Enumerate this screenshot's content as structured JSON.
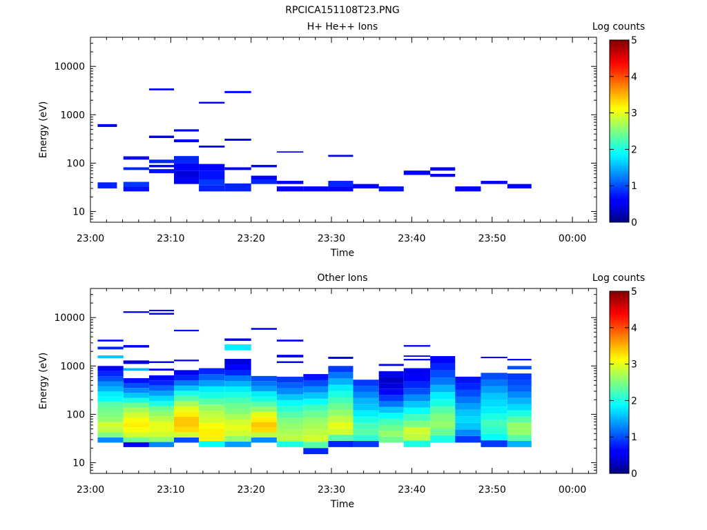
{
  "figure_title": "RPCICA151108T23.PNG",
  "colorbar_label": "Log counts",
  "chart_data": [
    {
      "type": "heatmap",
      "title": "H+ He++ Ions",
      "xlabel": "Time",
      "ylabel": "Energy (eV)",
      "x_ticks": [
        "23:00",
        "23:10",
        "23:20",
        "23:30",
        "23:40",
        "23:50",
        "00:00"
      ],
      "x_range_minutes": [
        0,
        63
      ],
      "y_scale": "log",
      "y_ticks": [
        "10",
        "100",
        "1000",
        "10000"
      ],
      "y_range_ev": [
        6,
        40000
      ],
      "colorbar_ticks": [
        "0",
        "1",
        "2",
        "3",
        "4",
        "5"
      ],
      "color_range": [
        0,
        5
      ],
      "cells": [
        [
          0.9,
          3.3,
          30,
          40,
          0.8
        ],
        [
          0.9,
          3.3,
          560,
          640,
          0.5
        ],
        [
          4.1,
          7.3,
          26,
          33,
          0.7
        ],
        [
          4.1,
          7.3,
          33,
          41,
          0.9
        ],
        [
          4.1,
          7.3,
          72,
          82,
          0.8
        ],
        [
          4.1,
          7.3,
          118,
          130,
          0.6
        ],
        [
          4.1,
          7.3,
          130,
          138,
          0.4
        ],
        [
          7.3,
          10.4,
          62,
          75,
          0.7
        ],
        [
          7.3,
          10.4,
          82,
          92,
          0.6
        ],
        [
          7.3,
          10.4,
          100,
          118,
          0.8
        ],
        [
          7.3,
          10.4,
          330,
          370,
          0.5
        ],
        [
          7.3,
          10.4,
          3200,
          3500,
          0.6
        ],
        [
          10.4,
          13.5,
          37,
          50,
          0.5
        ],
        [
          10.4,
          13.5,
          50,
          70,
          0.4
        ],
        [
          10.4,
          13.5,
          70,
          100,
          0.55
        ],
        [
          10.4,
          13.5,
          100,
          140,
          0.8
        ],
        [
          10.4,
          13.5,
          270,
          310,
          0.5
        ],
        [
          10.4,
          13.5,
          450,
          500,
          0.5
        ],
        [
          13.5,
          16.7,
          26,
          35,
          0.8
        ],
        [
          13.5,
          16.7,
          35,
          46,
          0.9
        ],
        [
          13.5,
          16.7,
          46,
          70,
          0.7
        ],
        [
          13.5,
          16.7,
          70,
          96,
          0.6
        ],
        [
          13.5,
          16.7,
          210,
          230,
          0.5
        ],
        [
          13.5,
          16.7,
          1700,
          1850,
          0.6
        ],
        [
          16.7,
          20.0,
          26,
          38,
          0.8
        ],
        [
          16.7,
          20.0,
          72,
          82,
          0.6
        ],
        [
          16.7,
          20.0,
          290,
          320,
          0.5
        ],
        [
          16.7,
          20.0,
          2800,
          3100,
          0.7
        ],
        [
          20.0,
          23.2,
          37,
          46,
          0.8
        ],
        [
          20.0,
          23.2,
          46,
          55,
          0.6
        ],
        [
          20.0,
          23.2,
          82,
          92,
          0.6
        ],
        [
          23.2,
          26.5,
          26,
          33,
          0.6
        ],
        [
          23.2,
          26.5,
          37,
          43,
          0.6
        ],
        [
          23.2,
          26.5,
          165,
          175,
          0.5
        ],
        [
          26.5,
          29.6,
          26,
          33,
          0.6
        ],
        [
          29.6,
          32.7,
          26,
          33,
          0.6
        ],
        [
          29.6,
          32.7,
          33,
          43,
          0.8
        ],
        [
          29.6,
          32.7,
          135,
          148,
          0.5
        ],
        [
          32.7,
          35.9,
          30,
          37,
          0.5
        ],
        [
          35.9,
          39.0,
          26,
          33,
          0.7
        ],
        [
          39.0,
          42.3,
          57,
          70,
          0.6
        ],
        [
          42.3,
          45.4,
          52,
          60,
          0.5
        ],
        [
          42.3,
          45.4,
          70,
          82,
          0.6
        ],
        [
          45.4,
          48.6,
          26,
          33,
          0.6
        ],
        [
          48.6,
          51.9,
          37,
          43,
          0.6
        ],
        [
          51.9,
          54.9,
          30,
          37,
          0.5
        ]
      ]
    },
    {
      "type": "heatmap",
      "title": "Other Ions",
      "xlabel": "Time",
      "ylabel": "Energy (eV)",
      "x_ticks": [
        "23:00",
        "23:10",
        "23:20",
        "23:30",
        "23:40",
        "23:50",
        "00:00"
      ],
      "x_range_minutes": [
        0,
        63
      ],
      "y_scale": "log",
      "y_ticks": [
        "10",
        "100",
        "1000",
        "10000"
      ],
      "y_range_ev": [
        6,
        40000
      ],
      "colorbar_ticks": [
        "0",
        "1",
        "2",
        "3",
        "4",
        "5"
      ],
      "color_range": [
        0,
        5
      ],
      "columns": [
        {
          "t": [
            0.9,
            4.1
          ],
          "elo": 26,
          "ehi": 1000,
          "levels": [
            1.3,
            2.5,
            2.8,
            2.9,
            2.6,
            2.5,
            2.4,
            2.3,
            1.9,
            1.8,
            1.5,
            1.3,
            1.0,
            0.8,
            0.6
          ],
          "extra": [
            [
              1450,
              1650,
              1.6
            ],
            [
              2200,
              2500,
              0.8
            ],
            [
              3200,
              3500,
              0.7
            ]
          ]
        },
        {
          "t": [
            4.1,
            7.3
          ],
          "elo": 21,
          "ehi": 560,
          "levels": [
            0.6,
            2.4,
            2.9,
            3.1,
            3.2,
            3.1,
            2.9,
            2.7,
            2.4,
            2.0,
            1.6,
            1.3,
            1.0,
            0.7
          ],
          "extra": [
            [
              800,
              900,
              1.5
            ],
            [
              1100,
              1300,
              0.4
            ],
            [
              2400,
              2700,
              0.6
            ],
            [
              12500,
              13500,
              0.4
            ]
          ]
        },
        {
          "t": [
            7.3,
            10.4
          ],
          "elo": 21,
          "ehi": 640,
          "levels": [
            1.3,
            2.6,
            2.9,
            3.0,
            3.0,
            2.8,
            2.6,
            2.4,
            2.0,
            1.7,
            1.4,
            1.1,
            0.8,
            0.6
          ],
          "extra": [
            [
              800,
              880,
              0.5
            ],
            [
              1150,
              1250,
              0.6
            ],
            [
              11500,
              12500,
              0.5
            ],
            [
              13500,
              14500,
              0.5
            ]
          ]
        },
        {
          "t": [
            10.4,
            13.5
          ],
          "elo": 26,
          "ehi": 820,
          "levels": [
            1.0,
            2.9,
            3.3,
            3.4,
            3.4,
            3.2,
            3.0,
            2.7,
            2.3,
            2.0,
            1.6,
            1.2,
            0.8,
            0.5
          ],
          "extra": [
            [
              1250,
              1350,
              0.6
            ],
            [
              5200,
              5600,
              0.7
            ]
          ]
        },
        {
          "t": [
            13.5,
            16.7
          ],
          "elo": 21,
          "ehi": 900,
          "levels": [
            1.9,
            3.2,
            3.2,
            3.1,
            2.9,
            2.8,
            2.6,
            2.3,
            2.0,
            1.8,
            1.4,
            1.1,
            0.8
          ]
        },
        {
          "t": [
            16.7,
            20.0
          ],
          "elo": 21,
          "ehi": 1400,
          "levels": [
            1.4,
            2.6,
            2.9,
            3.0,
            2.9,
            2.7,
            2.5,
            2.4,
            2.2,
            2.0,
            1.8,
            1.5,
            1.2,
            0.8,
            0.6,
            0.4
          ],
          "extra": [
            [
              2100,
              2800,
              1.8
            ],
            [
              3300,
              3700,
              0.5
            ]
          ]
        },
        {
          "t": [
            20.0,
            23.2
          ],
          "elo": 26,
          "ehi": 620,
          "levels": [
            1.3,
            2.8,
            3.3,
            3.4,
            3.2,
            3.0,
            2.6,
            2.3,
            2.0,
            1.8,
            1.4,
            1.2,
            1.0
          ],
          "extra": [
            [
              5600,
              6100,
              0.6
            ]
          ]
        },
        {
          "t": [
            23.2,
            26.5
          ],
          "elo": 21,
          "ehi": 600,
          "levels": [
            2.0,
            2.8,
            2.7,
            2.6,
            2.5,
            2.3,
            2.1,
            1.9,
            1.6,
            1.3,
            1.1,
            0.9
          ],
          "extra": [
            [
              1150,
              1250,
              0.6
            ],
            [
              1500,
              1700,
              0.5
            ],
            [
              3200,
              3500,
              0.6
            ]
          ]
        },
        {
          "t": [
            26.5,
            29.6
          ],
          "elo": 15,
          "ehi": 680,
          "levels": [
            0.8,
            2.3,
            2.9,
            2.8,
            2.7,
            2.6,
            2.4,
            2.2,
            1.9,
            1.6,
            1.3,
            1.0,
            0.7
          ]
        },
        {
          "t": [
            29.6,
            32.7
          ],
          "elo": 21,
          "ehi": 1000,
          "levels": [
            0.8,
            2.3,
            2.9,
            3.0,
            2.8,
            2.6,
            2.4,
            2.2,
            2.0,
            1.8,
            1.5,
            1.2,
            0.9
          ],
          "extra": [
            [
              1400,
              1550,
              0.6
            ]
          ]
        },
        {
          "t": [
            32.7,
            35.9
          ],
          "elo": 21,
          "ehi": 520,
          "levels": [
            0.9,
            2.1,
            2.3,
            2.2,
            2.0,
            1.8,
            1.6,
            1.5,
            1.3,
            1.1,
            0.9
          ]
        },
        {
          "t": [
            35.9,
            39.0
          ],
          "elo": 26,
          "ehi": 780,
          "levels": [
            2.4,
            2.6,
            2.4,
            2.2,
            1.9,
            1.6,
            1.2,
            0.9,
            0.6,
            0.4,
            0.3,
            0.5
          ],
          "extra": [
            [
              1000,
              1100,
              0.6
            ]
          ]
        },
        {
          "t": [
            39.0,
            42.3
          ],
          "elo": 21,
          "ehi": 900,
          "levels": [
            2.0,
            2.8,
            2.9,
            2.5,
            2.2,
            1.9,
            1.6,
            1.3,
            1.0,
            0.8,
            0.6,
            0.5
          ],
          "extra": [
            [
              1300,
              1400,
              0.5
            ],
            [
              1550,
              1650,
              0.5
            ],
            [
              2500,
              2700,
              0.6
            ]
          ]
        },
        {
          "t": [
            42.3,
            45.4
          ],
          "elo": 26,
          "ehi": 1600,
          "levels": [
            2.0,
            2.4,
            2.6,
            2.5,
            2.3,
            2.0,
            1.8,
            1.5,
            1.2,
            1.0,
            0.8,
            0.6
          ]
        },
        {
          "t": [
            45.4,
            48.6
          ],
          "elo": 26,
          "ehi": 600,
          "levels": [
            0.9,
            1.3,
            1.6,
            1.7,
            1.6,
            1.4,
            1.2,
            1.0,
            0.8,
            0.7
          ]
        },
        {
          "t": [
            48.6,
            51.9
          ],
          "elo": 21,
          "ehi": 720,
          "levels": [
            0.9,
            1.9,
            2.1,
            2.2,
            2.0,
            1.8,
            1.7,
            1.6,
            1.4,
            1.2,
            1.0
          ],
          "extra": [
            [
              1450,
              1550,
              0.6
            ]
          ]
        },
        {
          "t": [
            51.9,
            54.9
          ],
          "elo": 21,
          "ehi": 700,
          "levels": [
            1.5,
            2.3,
            2.6,
            2.6,
            2.3,
            2.0,
            1.7,
            1.5,
            1.3,
            1.1,
            1.0,
            0.9
          ],
          "extra": [
            [
              850,
              1000,
              1.0
            ],
            [
              1300,
              1400,
              0.6
            ]
          ]
        }
      ]
    }
  ]
}
